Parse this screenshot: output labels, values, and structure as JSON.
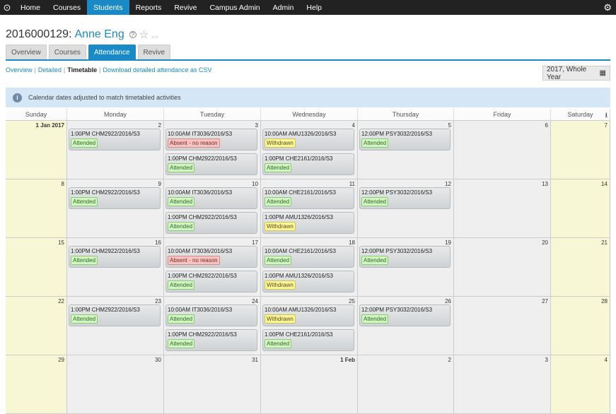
{
  "nav": {
    "items": [
      "Home",
      "Courses",
      "Students",
      "Reports",
      "Revive",
      "Campus Admin",
      "Admin",
      "Help"
    ],
    "active_index": 2
  },
  "page": {
    "id": "2016000129:",
    "name": "Anne Eng",
    "help": "?",
    "more": "..."
  },
  "tabs": {
    "items": [
      "Overview",
      "Courses",
      "Attendance",
      "Revive"
    ],
    "active_index": 2
  },
  "subnav": {
    "overview": "Overview",
    "detailed": "Detailed",
    "timetable": "Timetable",
    "download": "Download detailed attendance as CSV",
    "sep": "|"
  },
  "year_select": {
    "value": "2017, Whole Year"
  },
  "info": {
    "text": "Calendar dates adjusted to match timetabled activities",
    "icon": "info-icon"
  },
  "calendar": {
    "days": [
      "Sunday",
      "Monday",
      "Tuesday",
      "Wednesday",
      "Thursday",
      "Friday",
      "Saturday"
    ],
    "weeks": [
      {
        "dates": [
          "1 Jan 2017",
          "2",
          "3",
          "4",
          "5",
          "6",
          "7"
        ],
        "events": [
          [],
          [
            {
              "t": "1:00PM CHM2922/2016/S3",
              "s": "Attended"
            }
          ],
          [
            {
              "t": "10:00AM IT3036/2016/S3",
              "s": "Absent - no reason"
            },
            {
              "t": "1:00PM CHM2922/2016/S3",
              "s": "Attended"
            }
          ],
          [
            {
              "t": "10:00AM AMU1326/2016/S3",
              "s": "Withdrawn"
            },
            {
              "t": "1:00PM CHE2161/2016/S3",
              "s": "Attended"
            }
          ],
          [
            {
              "t": "12:00PM PSY3032/2016/S3",
              "s": "Attended"
            }
          ],
          [],
          []
        ]
      },
      {
        "dates": [
          "8",
          "9",
          "10",
          "11",
          "12",
          "13",
          "14"
        ],
        "events": [
          [],
          [
            {
              "t": "1:00PM CHM2922/2016/S3",
              "s": "Attended"
            }
          ],
          [
            {
              "t": "10:00AM IT3036/2016/S3",
              "s": "Attended"
            },
            {
              "t": "1:00PM CHM2922/2016/S3",
              "s": "Attended"
            }
          ],
          [
            {
              "t": "10:00AM CHE2161/2016/S3",
              "s": "Attended"
            },
            {
              "t": "1:00PM AMU1326/2016/S3",
              "s": "Withdrawn"
            }
          ],
          [
            {
              "t": "12:00PM PSY3032/2016/S3",
              "s": "Attended"
            }
          ],
          [],
          []
        ]
      },
      {
        "dates": [
          "15",
          "16",
          "17",
          "18",
          "19",
          "20",
          "21"
        ],
        "events": [
          [],
          [
            {
              "t": "1:00PM CHM2922/2016/S3",
              "s": "Attended"
            }
          ],
          [
            {
              "t": "10:00AM IT3036/2016/S3",
              "s": "Absent - no reason"
            },
            {
              "t": "1:00PM CHM2922/2016/S3",
              "s": "Attended"
            }
          ],
          [
            {
              "t": "10:00AM CHE2161/2016/S3",
              "s": "Attended"
            },
            {
              "t": "1:00PM AMU1326/2016/S3",
              "s": "Withdrawn"
            }
          ],
          [
            {
              "t": "12:00PM PSY3032/2016/S3",
              "s": "Attended"
            }
          ],
          [],
          []
        ]
      },
      {
        "dates": [
          "22",
          "23",
          "24",
          "25",
          "26",
          "27",
          "28"
        ],
        "events": [
          [],
          [
            {
              "t": "1:00PM CHM2922/2016/S3",
              "s": "Attended"
            }
          ],
          [
            {
              "t": "10:00AM IT3036/2016/S3",
              "s": "Attended"
            },
            {
              "t": "1:00PM CHM2922/2016/S3",
              "s": "Attended"
            }
          ],
          [
            {
              "t": "10:00AM AMU1326/2016/S3",
              "s": "Withdrawn"
            },
            {
              "t": "1:00PM CHE2161/2016/S3",
              "s": "Attended"
            }
          ],
          [
            {
              "t": "12:00PM PSY3032/2016/S3",
              "s": "Attended"
            }
          ],
          [],
          []
        ]
      },
      {
        "dates": [
          "29",
          "30",
          "31",
          "1 Feb",
          "2",
          "3",
          "4"
        ],
        "events": [
          [],
          [],
          [],
          [],
          [],
          [],
          []
        ]
      }
    ]
  },
  "colors": {
    "accent": "#1a8ac6",
    "nav_bg": "#222222",
    "attended": "#d4f5c6",
    "absent": "#f6c5c3",
    "withdrawn": "#fbf59b",
    "weekend": "#f7f7d6"
  }
}
